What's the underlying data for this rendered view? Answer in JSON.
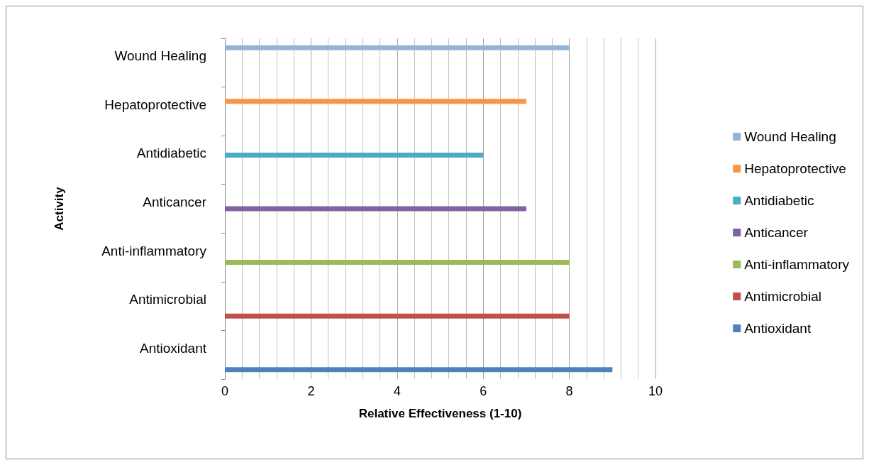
{
  "chart_data": {
    "type": "bar",
    "orientation": "horizontal",
    "xlabel": "Relative Effectiveness (1-10)",
    "ylabel": "Activity",
    "categories": [
      "Wound Healing",
      "Hepatoprotective",
      "Antidiabetic",
      "Anticancer",
      "Anti-inflammatory",
      "Antimicrobial",
      "Antioxidant"
    ],
    "series": [
      {
        "name": "Wound Healing",
        "color": "#95b3d7",
        "values": [
          8,
          null,
          null,
          null,
          null,
          null,
          null
        ]
      },
      {
        "name": "Hepatoprotective",
        "color": "#f79646",
        "values": [
          null,
          7,
          null,
          null,
          null,
          null,
          null
        ]
      },
      {
        "name": "Antidiabetic",
        "color": "#4bacc6",
        "values": [
          null,
          null,
          6,
          null,
          null,
          null,
          null
        ]
      },
      {
        "name": "Anticancer",
        "color": "#8064a2",
        "values": [
          null,
          null,
          null,
          7,
          null,
          null,
          null
        ]
      },
      {
        "name": "Anti-inflammatory",
        "color": "#9bbb59",
        "values": [
          null,
          null,
          null,
          null,
          8,
          null,
          null
        ]
      },
      {
        "name": "Antimicrobial",
        "color": "#c0504d",
        "values": [
          null,
          null,
          null,
          null,
          null,
          8,
          null
        ]
      },
      {
        "name": "Antioxidant",
        "color": "#4f81bd",
        "values": [
          null,
          null,
          null,
          null,
          null,
          null,
          9
        ]
      }
    ],
    "xlim": [
      0,
      10
    ],
    "xticks": [
      0,
      2,
      4,
      6,
      8,
      10
    ],
    "grid": "x",
    "legend": "right"
  }
}
